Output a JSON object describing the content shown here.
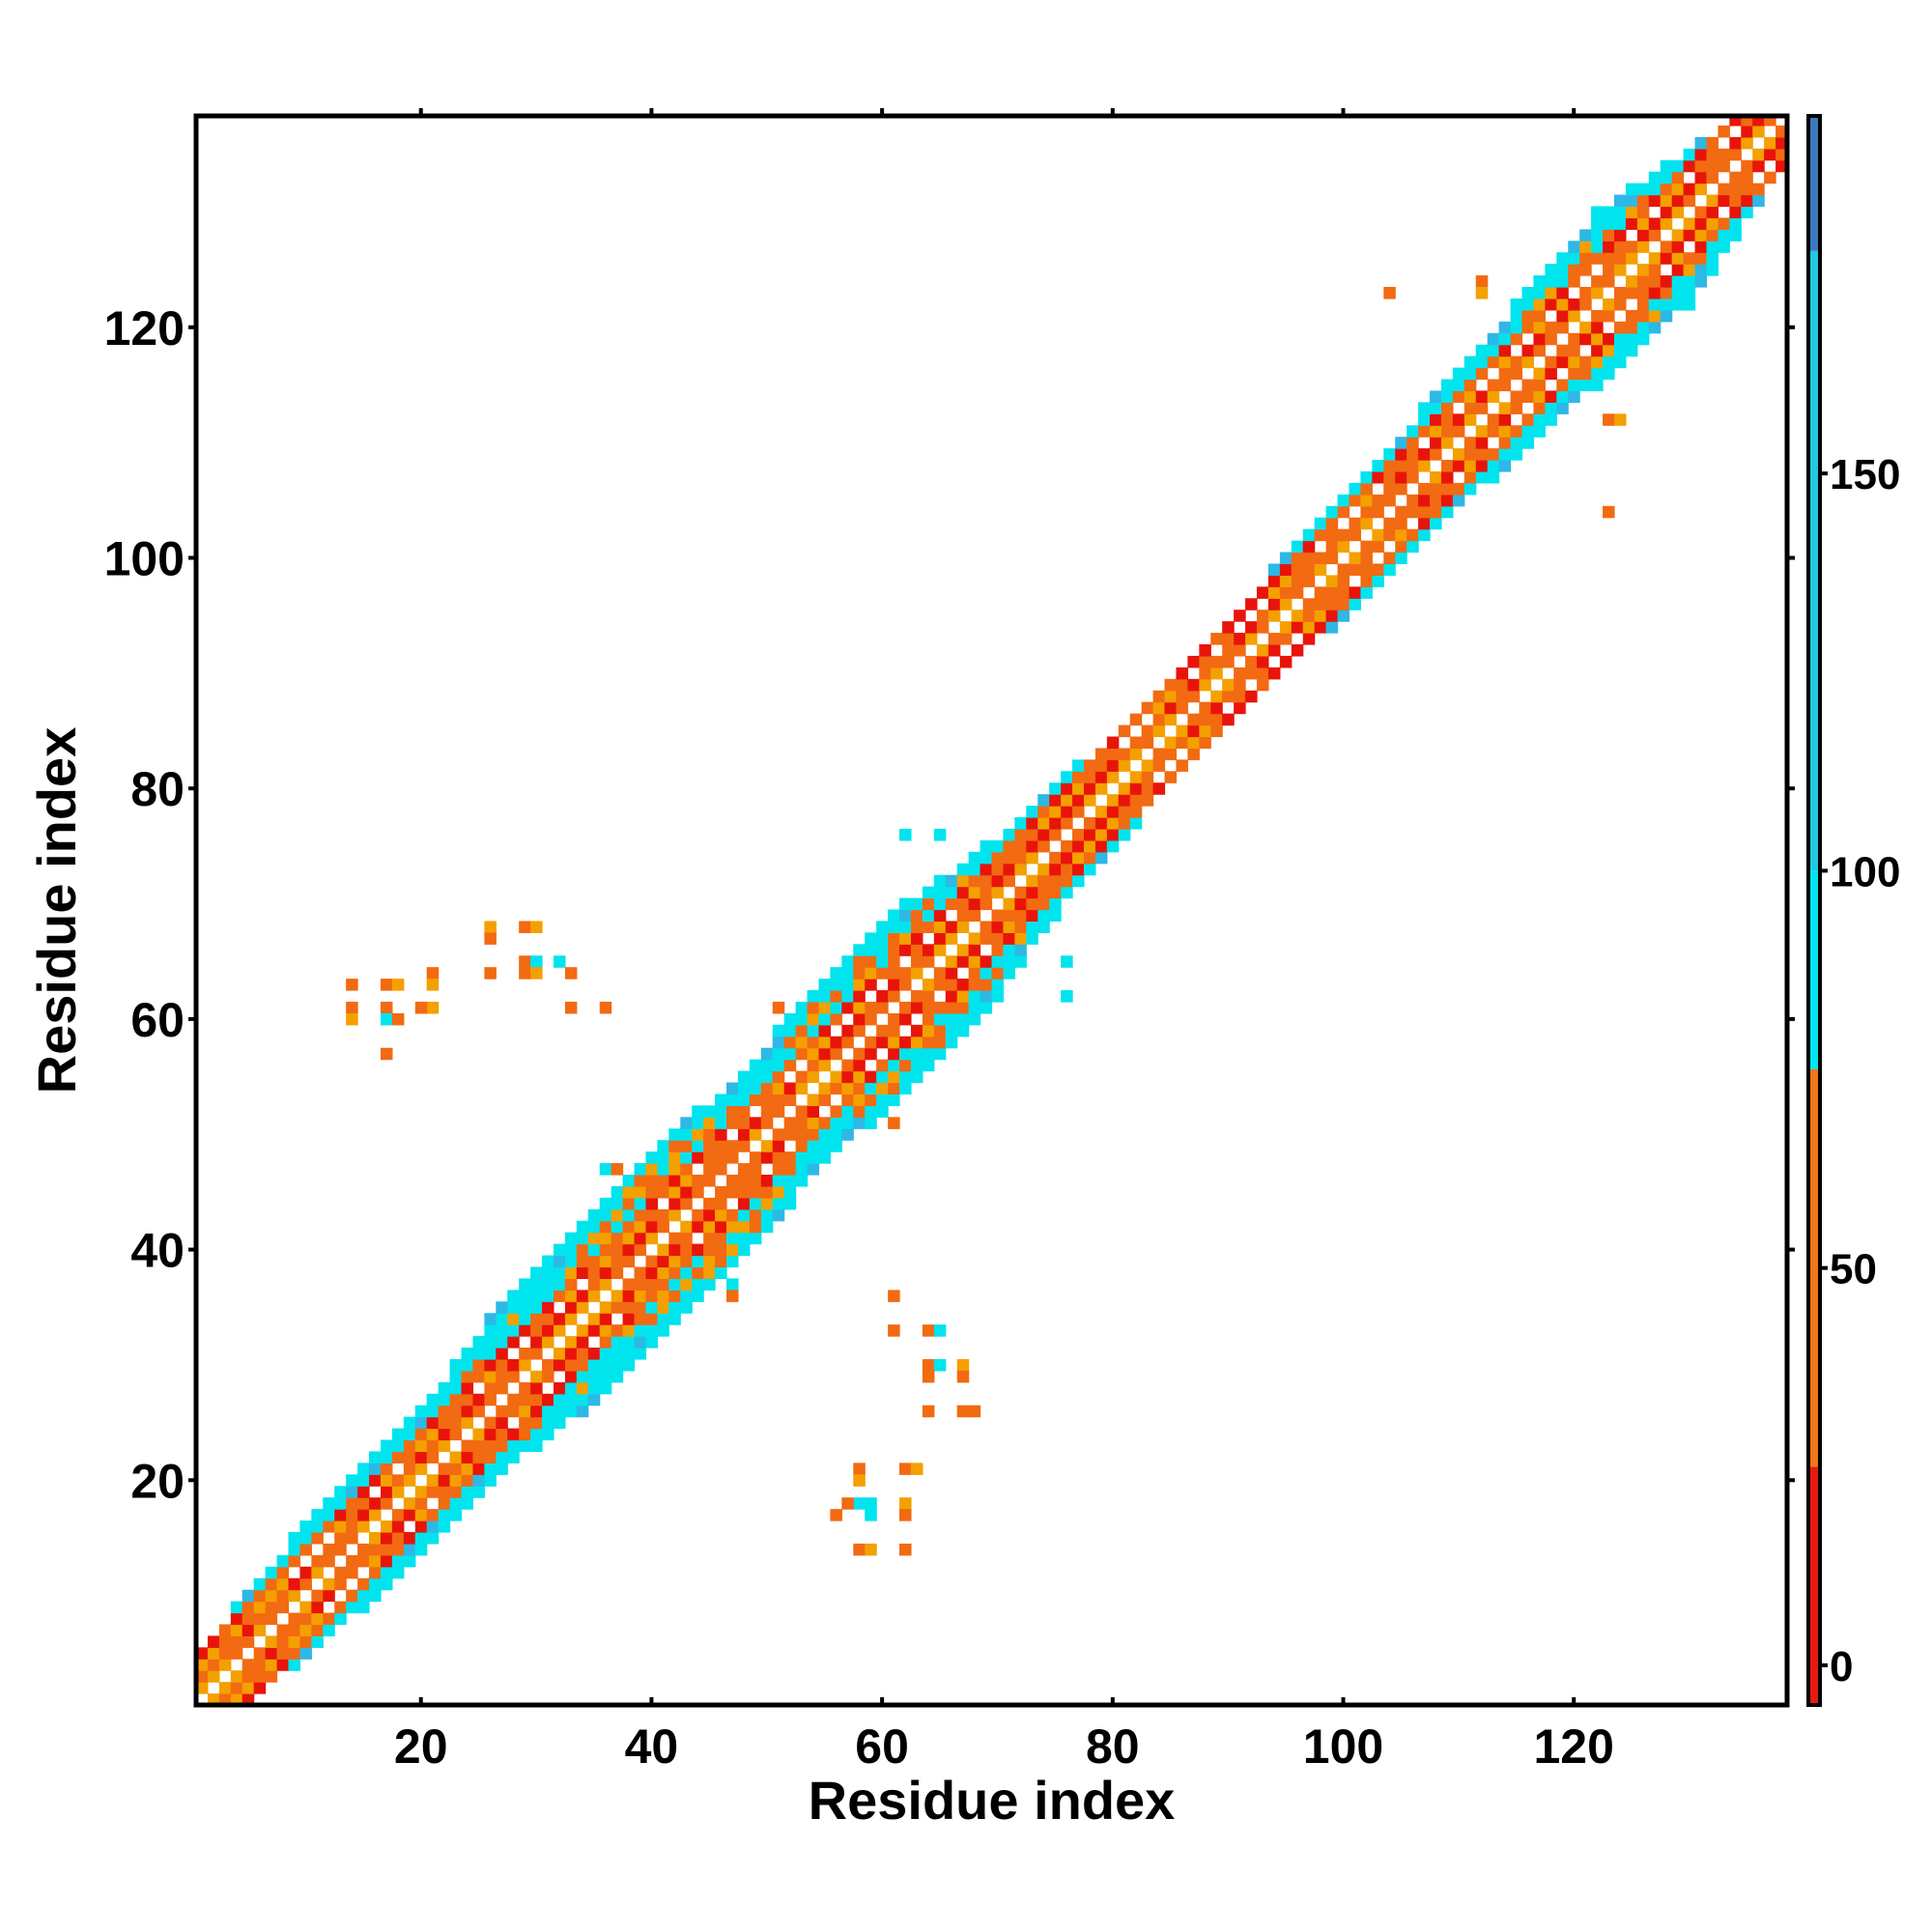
{
  "chart_data": {
    "type": "heatmap",
    "title": "",
    "xlabel": "Residue index",
    "ylabel": "Residue index",
    "xlim": [
      1,
      138
    ],
    "ylim": [
      1,
      138
    ],
    "xticks": [
      20,
      40,
      60,
      80,
      100,
      120
    ],
    "yticks": [
      20,
      40,
      60,
      80,
      100,
      120
    ],
    "grid": false,
    "colorbar": {
      "range": [
        -5,
        195
      ],
      "ticks": [
        0,
        50,
        100,
        150
      ],
      "bands": [
        {
          "from": -5,
          "to": 25,
          "color": "#e8190f"
        },
        {
          "from": 25,
          "to": 75,
          "color": "#f07818"
        },
        {
          "from": 75,
          "to": 100,
          "color": "#00e5ee"
        },
        {
          "from": 100,
          "to": 178,
          "color": "#22c8e0"
        },
        {
          "from": 178,
          "to": 195,
          "color": "#3d78c0"
        }
      ]
    },
    "palette": {
      "red": "#e8140a",
      "orange": "#f26a12",
      "amber": "#f4a000",
      "cyan": "#00e4ee",
      "sky": "#2eb8e6"
    },
    "diagonal_band": {
      "half_width_by_residue": [
        [
          1,
          4
        ],
        [
          12,
          6
        ],
        [
          22,
          6
        ],
        [
          30,
          8
        ],
        [
          38,
          8
        ],
        [
          44,
          9
        ],
        [
          52,
          7
        ],
        [
          58,
          9
        ],
        [
          66,
          8
        ],
        [
          72,
          6
        ],
        [
          80,
          5
        ],
        [
          88,
          4
        ],
        [
          96,
          5
        ],
        [
          104,
          5
        ],
        [
          110,
          6
        ],
        [
          118,
          7
        ],
        [
          126,
          8
        ],
        [
          134,
          5
        ],
        [
          138,
          3
        ]
      ]
    },
    "off_diagonal_cells": [
      [
        14,
        63,
        "orange"
      ],
      [
        14,
        61,
        "orange"
      ],
      [
        14,
        60,
        "amber"
      ],
      [
        17,
        63,
        "orange"
      ],
      [
        18,
        63,
        "amber"
      ],
      [
        17,
        61,
        "orange"
      ],
      [
        17,
        60,
        "cyan"
      ],
      [
        18,
        60,
        "orange"
      ],
      [
        21,
        64,
        "orange"
      ],
      [
        21,
        63,
        "amber"
      ],
      [
        21,
        61,
        "amber"
      ],
      [
        20,
        61,
        "orange"
      ],
      [
        17,
        57,
        "orange"
      ],
      [
        26,
        68,
        "amber"
      ],
      [
        26,
        67,
        "orange"
      ],
      [
        29,
        68,
        "orange"
      ],
      [
        30,
        68,
        "amber"
      ],
      [
        29,
        65,
        "orange"
      ],
      [
        29,
        64,
        "orange"
      ],
      [
        30,
        65,
        "cyan"
      ],
      [
        30,
        64,
        "amber"
      ],
      [
        32,
        65,
        "cyan"
      ],
      [
        33,
        64,
        "orange"
      ],
      [
        26,
        64,
        "orange"
      ],
      [
        33,
        61,
        "orange"
      ],
      [
        36,
        61,
        "orange"
      ],
      [
        58,
        21,
        "orange"
      ],
      [
        58,
        20,
        "amber"
      ],
      [
        58,
        18,
        "cyan"
      ],
      [
        57,
        18,
        "orange"
      ],
      [
        59,
        18,
        "cyan"
      ],
      [
        59,
        17,
        "cyan"
      ],
      [
        56,
        17,
        "orange"
      ],
      [
        62,
        18,
        "amber"
      ],
      [
        62,
        17,
        "orange"
      ],
      [
        62,
        21,
        "orange"
      ],
      [
        63,
        21,
        "amber"
      ],
      [
        58,
        14,
        "orange"
      ],
      [
        59,
        14,
        "amber"
      ],
      [
        62,
        14,
        "orange"
      ],
      [
        61,
        36,
        "orange"
      ],
      [
        61,
        33,
        "orange"
      ],
      [
        64,
        33,
        "orange"
      ],
      [
        65,
        33,
        "cyan"
      ],
      [
        64,
        30,
        "orange"
      ],
      [
        65,
        30,
        "cyan"
      ],
      [
        64,
        29,
        "orange"
      ],
      [
        67,
        30,
        "amber"
      ],
      [
        67,
        29,
        "orange"
      ],
      [
        64,
        26,
        "orange"
      ],
      [
        67,
        26,
        "orange"
      ],
      [
        68,
        26,
        "orange"
      ],
      [
        104,
        123,
        "orange"
      ],
      [
        112,
        124,
        "orange"
      ],
      [
        112,
        123,
        "amber"
      ],
      [
        123,
        112,
        "orange"
      ],
      [
        124,
        112,
        "amber"
      ],
      [
        123,
        104,
        "orange"
      ],
      [
        65,
        76,
        "cyan"
      ],
      [
        62,
        76,
        "cyan"
      ],
      [
        76,
        65,
        "cyan"
      ],
      [
        76,
        62,
        "cyan"
      ],
      [
        51,
        61,
        "orange"
      ],
      [
        61,
        51,
        "orange"
      ],
      [
        47,
        37,
        "cyan"
      ],
      [
        47,
        36,
        "orange"
      ],
      [
        36,
        47,
        "cyan"
      ],
      [
        37,
        47,
        "orange"
      ]
    ]
  }
}
